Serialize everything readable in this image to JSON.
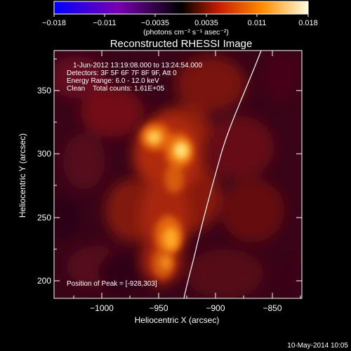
{
  "colorbar": {
    "tick_labels": [
      "−0.018",
      "−0.011",
      "−0.0035",
      "0.0035",
      "0.011",
      "0.018"
    ],
    "units_text": "(photons cm⁻² s⁻¹ asec⁻²)",
    "colors": [
      "#0000ff",
      "#7a00b0",
      "#000000",
      "#c81e00",
      "#ff8c00",
      "#ffffe0"
    ]
  },
  "plot": {
    "title": "Reconstructed RHESSI Image",
    "time_range": "1-Jun-2012 13:19:08.000 to 13:24:54.000",
    "detectors": "Detectors: 3F 5F 6F 7F 8F 9F, Att 0",
    "energy_range": "Energy Range: 6.0 - 12.0 keV",
    "clean_counts": "Clean    Total counts: 1.61E+05",
    "peak_position": "Position of Peak = [-928,303]",
    "xlabel": "Heliocentric X (arcsec)",
    "ylabel": "Heliocentric Y (arcsec)",
    "x_ticks": [
      "−1000",
      "−950",
      "−900",
      "−850"
    ],
    "y_ticks": [
      "350",
      "300",
      "250",
      "200"
    ]
  },
  "footer": {
    "timestamp": "10-May-2014 10:05"
  }
}
